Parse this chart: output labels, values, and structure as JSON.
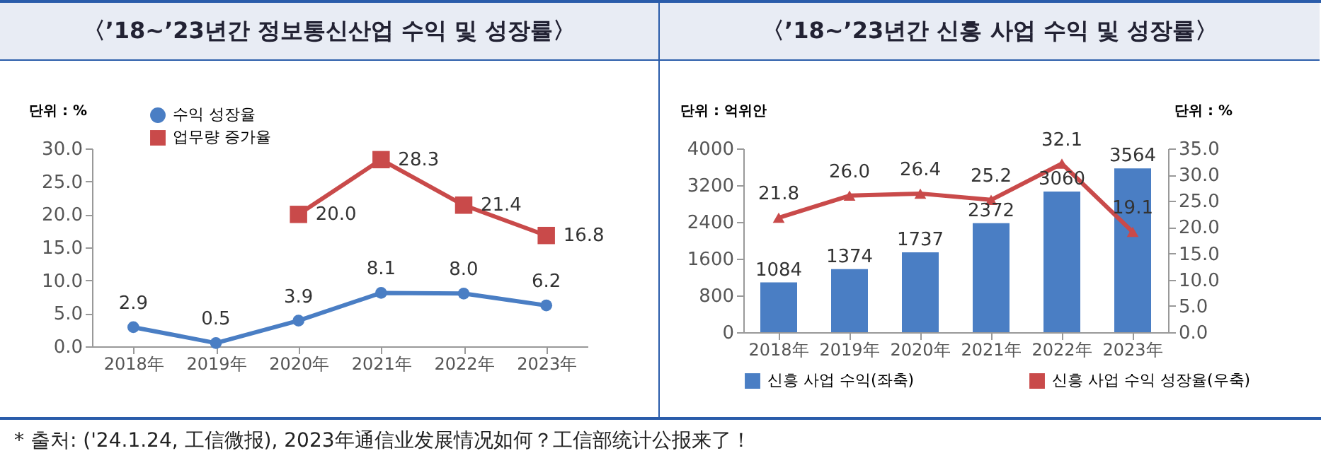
{
  "chart_data": [
    {
      "type": "line",
      "title": "〈’18~’23년간 정보통신산업 수익 및 성장률〉",
      "ylabel": "단위 : %",
      "categories": [
        "2018年",
        "2019年",
        "2020年",
        "2021年",
        "2022年",
        "2023年"
      ],
      "series": [
        {
          "name": "수익 성장율",
          "color": "#4a7ec4",
          "marker": "circle",
          "values": [
            2.9,
            0.5,
            3.9,
            8.1,
            8.0,
            6.2
          ],
          "value_labels": [
            "2.9",
            "0.5",
            "3.9",
            "8.1",
            "8.0",
            "6.2"
          ]
        },
        {
          "name": "업무량 증가율",
          "color": "#c94a4a",
          "marker": "square",
          "values": [
            null,
            null,
            20.0,
            28.3,
            21.4,
            16.8
          ],
          "value_labels": [
            null,
            null,
            "20.0",
            "28.3",
            "21.4",
            "16.8"
          ]
        }
      ],
      "ylim": [
        0,
        30
      ],
      "yticks": [
        {
          "value": 0,
          "label": "0.0"
        },
        {
          "value": 5,
          "label": "5.0"
        },
        {
          "value": 10,
          "label": "10.0"
        },
        {
          "value": 15,
          "label": "15.0"
        },
        {
          "value": 20,
          "label": "20.0"
        },
        {
          "value": 25,
          "label": "25.0"
        },
        {
          "value": 30,
          "label": "30.0"
        }
      ],
      "data_labels": true,
      "legend": "top left",
      "grid": false,
      "annotations": [
        "* 출처: ('24.1.24, 工信微报), 2023年通信业发展情况如何？工信部统计公报来了！"
      ]
    },
    {
      "type": "bar",
      "title": "〈’18~’23년간 신흥 사업 수익 및 성장률〉",
      "ylabel": "단위 : 억위안",
      "y2label": "단위 : %",
      "categories": [
        "2018年",
        "2019年",
        "2020年",
        "2021年",
        "2022年",
        "2023年"
      ],
      "series": [
        {
          "name": "신흥 사업 수익(좌축)",
          "color": "#4a7ec4",
          "values": [
            1084,
            1374,
            1737,
            2372,
            3060,
            3564
          ]
        },
        {
          "name": "신흥 사업 수익 성장율(우축)",
          "type": "line",
          "axis": "y2",
          "color": "#c94a4a",
          "marker": "triangle",
          "values": [
            21.8,
            26.0,
            26.4,
            25.2,
            32.1,
            19.1
          ],
          "value_labels": [
            "21.8",
            "26.0",
            "26.4",
            "25.2",
            "32.1",
            "19.1"
          ]
        }
      ],
      "ylim": [
        0,
        4000
      ],
      "yticks": [
        0,
        800,
        1600,
        2400,
        3200,
        4000
      ],
      "y2lim": [
        0,
        35
      ],
      "y2ticks": [
        {
          "value": 0,
          "label": "0.0"
        },
        {
          "value": 5,
          "label": "5.0"
        },
        {
          "value": 10,
          "label": "10.0"
        },
        {
          "value": 15,
          "label": "15.0"
        },
        {
          "value": 20,
          "label": "20.0"
        },
        {
          "value": 25,
          "label": "25.0"
        },
        {
          "value": 30,
          "label": "30.0"
        },
        {
          "value": 35,
          "label": "35.0"
        }
      ],
      "data_labels": true,
      "legend": "bottom",
      "grid": false
    }
  ]
}
